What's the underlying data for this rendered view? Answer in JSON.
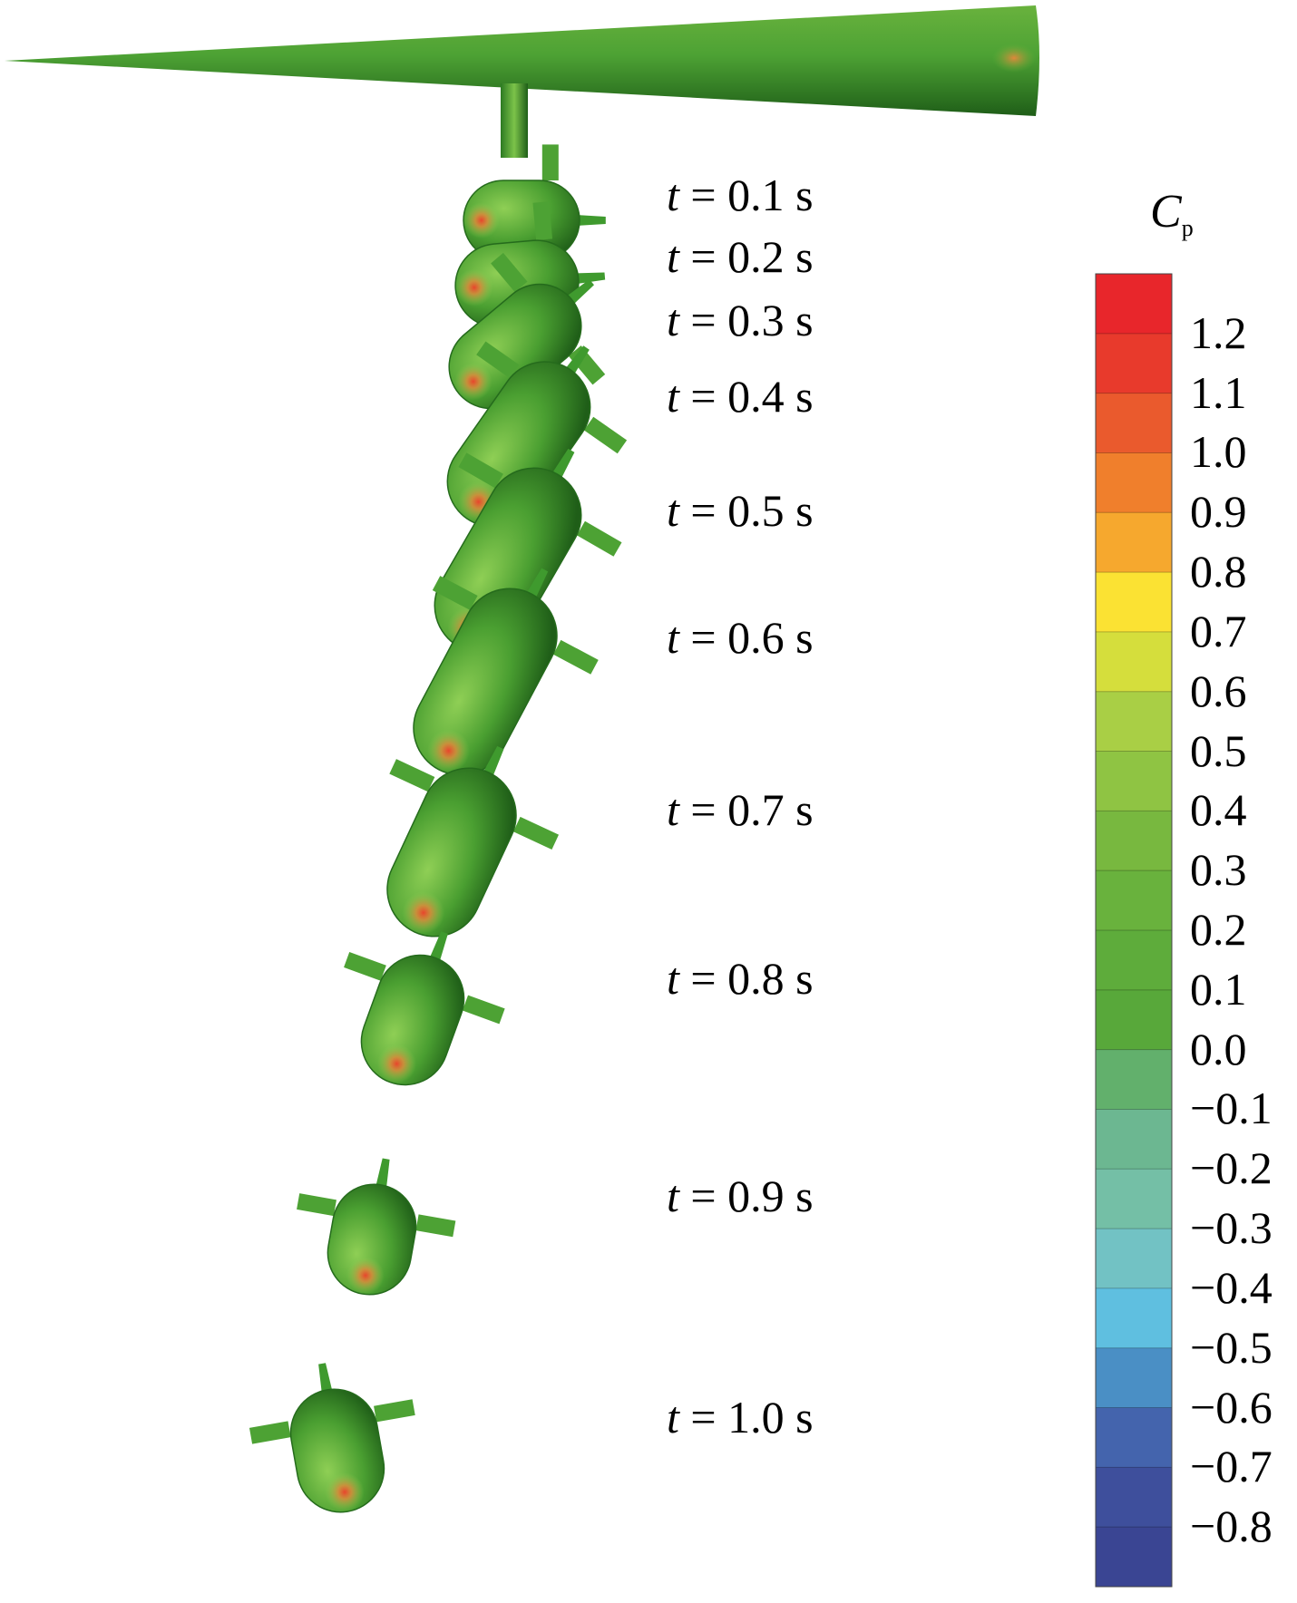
{
  "time_labels": [
    {
      "var": "t",
      "text": " = 0.1 s"
    },
    {
      "var": "t",
      "text": " = 0.2 s"
    },
    {
      "var": "t",
      "text": " = 0.3 s"
    },
    {
      "var": "t",
      "text": " = 0.4 s"
    },
    {
      "var": "t",
      "text": " = 0.5 s"
    },
    {
      "var": "t",
      "text": " = 0.6 s"
    },
    {
      "var": "t",
      "text": " = 0.7 s"
    },
    {
      "var": "t",
      "text": " = 0.8 s"
    },
    {
      "var": "t",
      "text": " = 0.9 s"
    },
    {
      "var": "t",
      "text": " = 1.0 s"
    }
  ],
  "colorbar": {
    "title_symbol": "C",
    "title_subscript": "p",
    "ticks": [
      "1.2",
      "1.1",
      "1.0",
      "0.9",
      "0.8",
      "0.7",
      "0.6",
      "0.5",
      "0.4",
      "0.3",
      "0.2",
      "0.1",
      "0.0",
      "−0.1",
      "−0.2",
      "−0.3",
      "−0.4",
      "−0.5",
      "−0.6",
      "−0.7",
      "−0.8"
    ],
    "colors": [
      "#e8262b",
      "#e83a2c",
      "#ea5a2d",
      "#f07f2c",
      "#f6a82e",
      "#fbe233",
      "#d5de3c",
      "#a9cf45",
      "#8fc443",
      "#78b83f",
      "#69b23d",
      "#5eac3b",
      "#58a83a",
      "#62b06c",
      "#6cb791",
      "#74bfa6",
      "#72c2c4",
      "#5fbfe0",
      "#4a8fc5",
      "#4464ad",
      "#3e4f9c",
      "#3a4593"
    ]
  },
  "colors": {
    "body_green": "#3f9a2e",
    "body_light": "#7cc34a",
    "body_dark": "#1f5e18",
    "stagnation": "#e8452c"
  }
}
